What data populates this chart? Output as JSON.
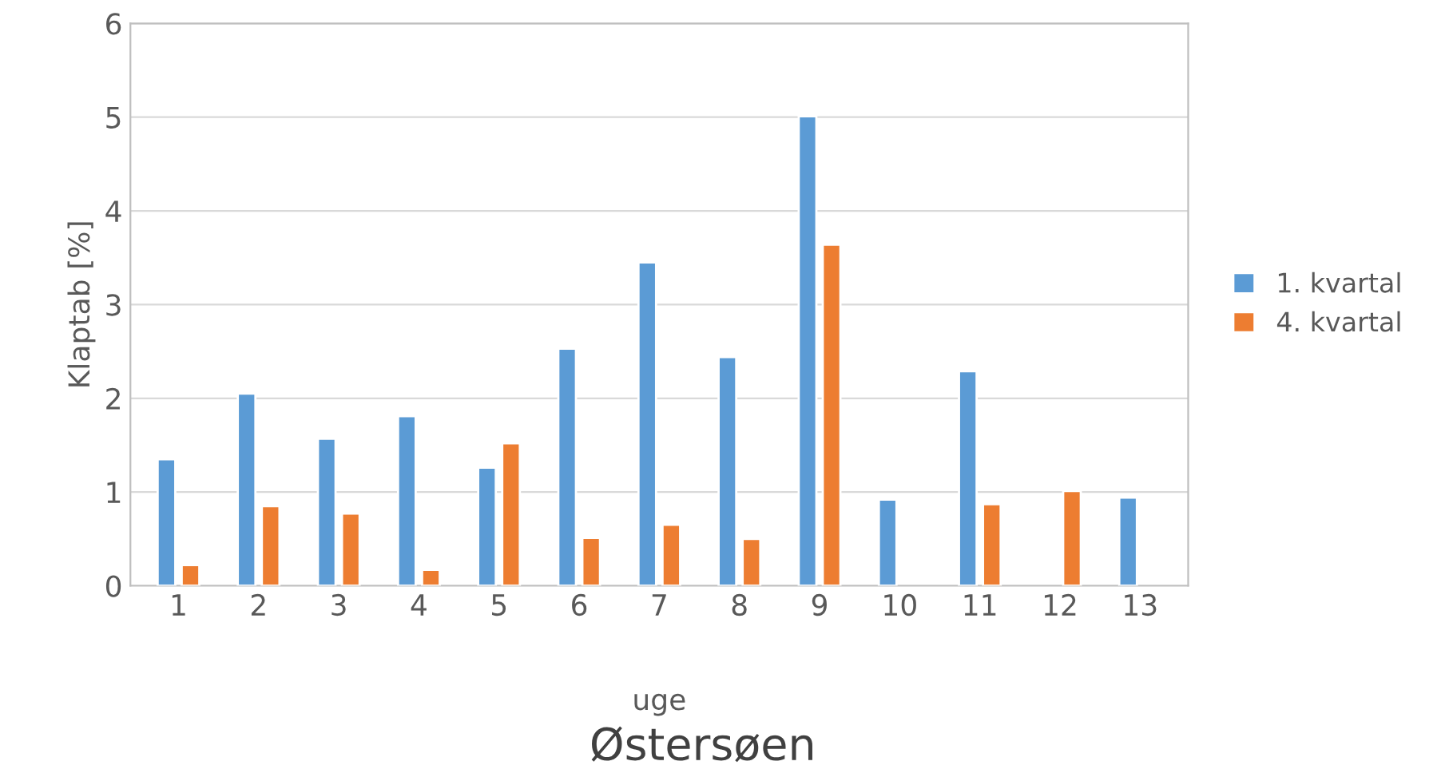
{
  "chart_data": {
    "type": "bar",
    "title": "Østersøen",
    "xlabel": "uge",
    "ylabel": "Klaptab [%]",
    "categories": [
      "1",
      "2",
      "3",
      "4",
      "5",
      "6",
      "7",
      "8",
      "9",
      "10",
      "11",
      "12",
      "13"
    ],
    "series": [
      {
        "name": "1. kvartal",
        "color": "#5b9bd5",
        "values": [
          1.35,
          2.05,
          1.57,
          1.81,
          1.26,
          2.53,
          3.45,
          2.44,
          5.01,
          0.92,
          2.29,
          null,
          0.94
        ]
      },
      {
        "name": "4. kvartal",
        "color": "#ed7d31",
        "values": [
          0.22,
          0.85,
          0.77,
          0.17,
          1.52,
          0.51,
          0.65,
          0.5,
          3.64,
          null,
          0.87,
          1.01,
          null
        ]
      }
    ],
    "ylim": [
      0,
      6
    ],
    "yticks": [
      0,
      1,
      2,
      3,
      4,
      5,
      6
    ],
    "grid": "y",
    "legend": "right"
  }
}
